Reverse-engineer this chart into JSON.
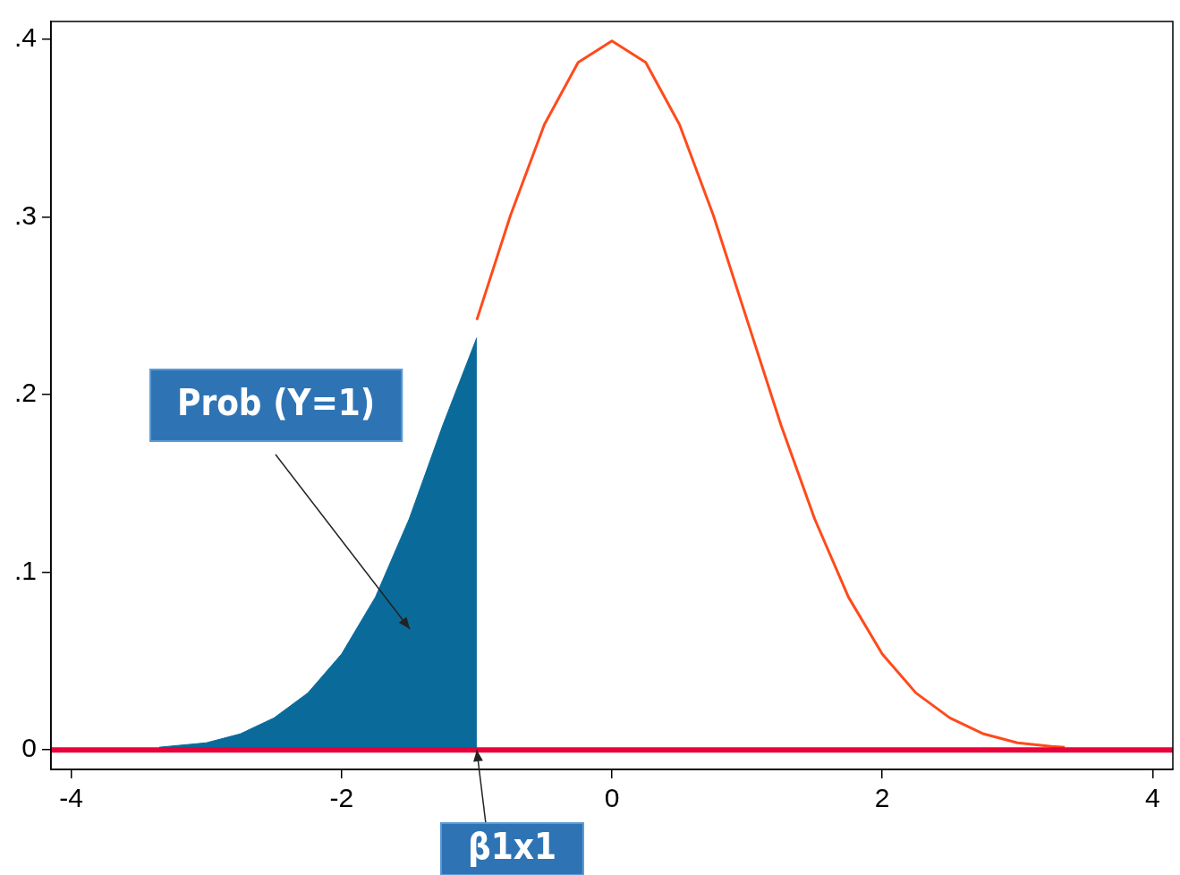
{
  "chart_data": {
    "type": "line",
    "series": [
      {
        "type": "area",
        "color": "#0a6a9a",
        "x": [
          -3.35,
          -3,
          -2.75,
          -2.5,
          -2.25,
          -2,
          -1.75,
          -1.5,
          -1.25,
          -1
        ],
        "values": [
          0.0015,
          0.004,
          0.009,
          0.018,
          0.032,
          0.054,
          0.086,
          0.13,
          0.183,
          0.232
        ]
      },
      {
        "type": "line",
        "color": "#ff4a1a",
        "x": [
          -1,
          -0.75,
          -0.5,
          -0.25,
          0,
          0.25,
          0.5,
          0.75,
          1,
          1.25,
          1.5,
          1.75,
          2,
          2.25,
          2.5,
          2.75,
          3,
          3.25,
          3.35
        ],
        "values": [
          0.242,
          0.301,
          0.352,
          0.387,
          0.399,
          0.387,
          0.352,
          0.301,
          0.242,
          0.183,
          0.13,
          0.086,
          0.054,
          0.032,
          0.018,
          0.009,
          0.004,
          0.002,
          0.0015
        ]
      }
    ],
    "xlim": [
      -4.15,
      4.15
    ],
    "xticks": [
      -4,
      -2,
      0,
      2,
      4
    ],
    "ylim": [
      -0.011,
      0.41
    ],
    "yticks": [
      0,
      {
        "value": 0.1,
        "label": ".1"
      },
      {
        "value": 0.2,
        "label": ".2"
      },
      {
        "value": 0.3,
        "label": ".3"
      },
      {
        "value": 0.4,
        "label": ".4"
      }
    ],
    "ref_lines": [
      {
        "axis": "y",
        "value": 0,
        "color": "#e8003a"
      }
    ],
    "annotations": [
      "Prob (Y=1)",
      {
        "text": "β1x1",
        "x": -1,
        "y": 0
      }
    ],
    "grid": false,
    "legend": false,
    "marker": "none",
    "line_style": "solid"
  }
}
